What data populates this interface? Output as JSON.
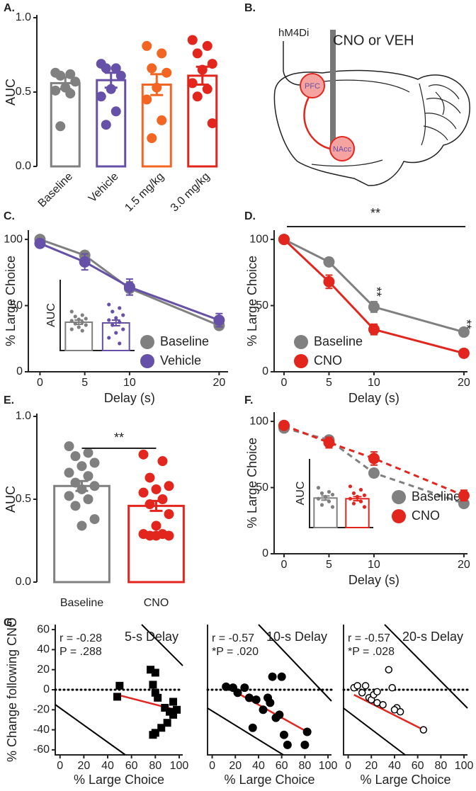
{
  "diagram": {
    "label": "B.",
    "receptor": "hM4Di",
    "drug": "CNO or VEH",
    "regions": [
      "PFC",
      "NAcc"
    ]
  },
  "chart_data": [
    {
      "type": "bar",
      "panel_label": "A.",
      "ylabel": "AUC",
      "categories": [
        "Baseline",
        "Vehicle",
        "1.5 mg/kg",
        "3.0 mg/kg"
      ],
      "values": [
        0.56,
        0.58,
        0.55,
        0.61
      ],
      "errors": [
        0.04,
        0.05,
        0.07,
        0.06
      ],
      "colors": [
        "#808080",
        "#6650a8",
        "#f26522",
        "#e2261d"
      ],
      "points": [
        [
          0.63,
          0.62,
          0.61,
          0.57,
          0.53,
          0.51,
          0.49,
          0.27
        ],
        [
          0.69,
          0.66,
          0.66,
          0.61,
          0.52,
          0.47,
          0.37,
          0.28
        ],
        [
          0.81,
          0.76,
          0.66,
          0.63,
          0.53,
          0.45,
          0.31,
          0.19
        ],
        [
          0.85,
          0.81,
          0.76,
          0.69,
          0.65,
          0.56,
          0.52,
          0.47,
          0.29
        ]
      ],
      "ylim": [
        0,
        1
      ],
      "yticks": [
        {
          "value": 0,
          "label": "0.0"
        },
        {
          "value": 0.5,
          "label": "0.5"
        },
        {
          "value": 1,
          "label": "1.0"
        }
      ]
    },
    {
      "type": "line",
      "panel_label": "C.",
      "xlabel": "Delay (s)",
      "ylabel": "% Large Choice",
      "x": [
        0,
        5,
        10,
        20
      ],
      "series": [
        {
          "name": "Baseline",
          "color": "#808080",
          "values": [
            100,
            88,
            63,
            35
          ],
          "errors": [
            2,
            3,
            5,
            3
          ]
        },
        {
          "name": "Vehicle",
          "color": "#6650a8",
          "values": [
            97,
            83,
            64,
            39
          ],
          "errors": [
            3,
            6,
            6,
            5
          ]
        }
      ],
      "xlim": [
        -1.3,
        21
      ],
      "ylim": [
        0,
        107
      ],
      "xticks": [
        0,
        5,
        10,
        20
      ],
      "yticks": [
        0,
        50,
        100
      ],
      "inset": {
        "ylabel": "AUC",
        "ylim": [
          0,
          1
        ],
        "values": [
          0.4,
          0.39
        ],
        "errors": [
          0.03,
          0.04
        ],
        "points": [
          [
            0.55,
            0.5,
            0.48,
            0.45,
            0.44,
            0.42,
            0.4,
            0.38,
            0.36,
            0.33,
            0.3,
            0.28
          ],
          [
            0.65,
            0.6,
            0.55,
            0.5,
            0.46,
            0.43,
            0.4,
            0.36,
            0.3,
            0.25,
            0.18,
            0.1
          ]
        ]
      }
    },
    {
      "type": "line",
      "panel_label": "D.",
      "xlabel": "Delay (s)",
      "ylabel": "% Large Choice",
      "x": [
        0,
        5,
        10,
        20
      ],
      "series": [
        {
          "name": "Baseline",
          "color": "#808080",
          "values": [
            100,
            83,
            49,
            30
          ],
          "errors": [
            1,
            3,
            4,
            3
          ]
        },
        {
          "name": "CNO",
          "color": "#e2261d",
          "values": [
            100,
            68,
            32,
            14
          ],
          "errors": [
            1,
            5,
            4,
            3
          ]
        }
      ],
      "xlim": [
        -1.1,
        20.4
      ],
      "ylim": [
        0,
        107
      ],
      "xticks": [
        0,
        5,
        10,
        20
      ],
      "yticks": [
        0,
        50,
        100
      ],
      "annotations": [
        "**",
        "**",
        "**"
      ]
    },
    {
      "type": "bar",
      "panel_label": "E.",
      "ylabel": "AUC",
      "categories": [
        "Baseline",
        "CNO"
      ],
      "values": [
        0.58,
        0.46
      ],
      "errors": [
        0.03,
        0.03
      ],
      "colors": [
        "#808080",
        "#e2261d"
      ],
      "points": [
        [
          0.82,
          0.78,
          0.76,
          0.72,
          0.7,
          0.66,
          0.64,
          0.6,
          0.58,
          0.56,
          0.52,
          0.5,
          0.46,
          0.38,
          0.34
        ],
        [
          0.77,
          0.73,
          0.63,
          0.58,
          0.56,
          0.54,
          0.5,
          0.47,
          0.41,
          0.34,
          0.29,
          0.29,
          0.28,
          0.28,
          0.28
        ]
      ],
      "annotation": "**",
      "ylim": [
        0,
        1
      ],
      "yticks": [
        {
          "value": 0,
          "label": "0.0"
        },
        {
          "value": 0.5,
          "label": "0.5"
        },
        {
          "value": 1,
          "label": "1.0"
        }
      ]
    },
    {
      "type": "line",
      "panel_label": "F.",
      "xlabel": "Delay (s)",
      "ylabel": "% Large Choice",
      "line_style": "dashed",
      "x": [
        0,
        5,
        10,
        20
      ],
      "series": [
        {
          "name": "Baseline",
          "color": "#808080",
          "values": [
            95,
            86,
            61,
            38
          ],
          "errors": [
            2,
            2,
            3,
            3
          ]
        },
        {
          "name": "CNO",
          "color": "#e2261d",
          "values": [
            97,
            84,
            72,
            44
          ],
          "errors": [
            2,
            4,
            5,
            4
          ]
        }
      ],
      "xlim": [
        -1.1,
        20.4
      ],
      "ylim": [
        0,
        107
      ],
      "xticks": [
        0,
        5,
        10,
        20
      ],
      "yticks": [
        0,
        50,
        100
      ],
      "inset": {
        "ylabel": "AUC",
        "ylim": [
          0,
          1
        ],
        "values": [
          0.43,
          0.42
        ],
        "errors": [
          0.03,
          0.03
        ],
        "points": [
          [
            0.58,
            0.52,
            0.5,
            0.48,
            0.45,
            0.42,
            0.38,
            0.33,
            0.3
          ],
          [
            0.6,
            0.55,
            0.5,
            0.47,
            0.45,
            0.42,
            0.38,
            0.35,
            0.3
          ]
        ]
      }
    },
    {
      "type": "scatter",
      "panel_label": "G.",
      "title": "5-s Delay",
      "annotations": [
        "r = -0.28",
        "P = .288"
      ],
      "xlabel": "% Large Choice",
      "ylabel": "% Change following CNO",
      "marker": "square",
      "color": "#000000",
      "x": [
        48,
        50,
        76,
        80,
        78,
        80,
        82,
        88,
        92,
        95,
        90,
        85,
        80,
        78,
        95,
        98
      ],
      "y": [
        -7,
        4,
        20,
        17,
        5,
        -3,
        -8,
        -18,
        -22,
        -25,
        -33,
        -38,
        -43,
        -45,
        -12,
        -20
      ],
      "fit": {
        "color": "#e2261d",
        "x": [
          48,
          97
        ],
        "y": [
          -5,
          -20
        ]
      },
      "hline": 0,
      "xlim": [
        -4,
        103
      ],
      "ylim": [
        -65,
        65
      ],
      "xticks": [
        0,
        20,
        40,
        60,
        80,
        100
      ],
      "yticks": [
        -60,
        -40,
        -20,
        0,
        20,
        40,
        60
      ]
    },
    {
      "type": "scatter",
      "title": "10-s Delay",
      "annotations": [
        "r = -0.57",
        "*P = .020"
      ],
      "xlabel": "% Large Choice",
      "marker": "circle",
      "color": "#000000",
      "x": [
        12,
        18,
        22,
        28,
        32,
        38,
        44,
        48,
        52,
        55,
        58,
        60,
        35,
        62,
        65,
        80,
        82,
        50
      ],
      "y": [
        3,
        2,
        -3,
        2,
        -8,
        -10,
        -20,
        -8,
        13,
        -28,
        -25,
        13,
        -38,
        -45,
        -55,
        -55,
        -42,
        -13
      ],
      "fit": {
        "color": "#e2261d",
        "x": [
          12,
          82
        ],
        "y": [
          3,
          -42
        ]
      },
      "hline": 0,
      "xlim": [
        -4,
        103
      ],
      "ylim": [
        -65,
        65
      ],
      "xticks": [
        0,
        20,
        40,
        60,
        80,
        100
      ]
    },
    {
      "type": "scatter",
      "title": "20-s Delay",
      "annotations": [
        "r = -0.57",
        "*P = .028"
      ],
      "xlabel": "% Large Choice",
      "marker": "open-circle",
      "color": "#000000",
      "x": [
        5,
        8,
        15,
        12,
        18,
        20,
        22,
        25,
        25,
        35,
        38,
        42,
        40,
        45,
        65,
        30
      ],
      "y": [
        2,
        4,
        4,
        -3,
        -8,
        -10,
        -5,
        -13,
        -2,
        20,
        2,
        -18,
        -20,
        -22,
        -40,
        -15
      ],
      "fit": {
        "color": "#e2261d",
        "x": [
          5,
          65
        ],
        "y": [
          -5,
          -40
        ]
      },
      "hline": 0,
      "xlim": [
        -4,
        103
      ],
      "ylim": [
        -65,
        65
      ],
      "xticks": [
        0,
        20,
        40,
        60,
        80,
        100
      ]
    }
  ]
}
